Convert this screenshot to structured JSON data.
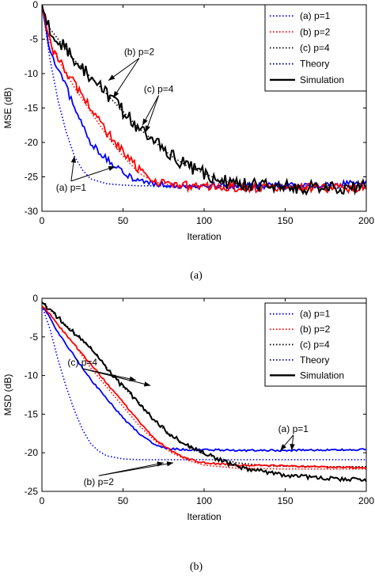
{
  "chart_data": [
    {
      "type": "line",
      "caption": "(a)",
      "xlabel": "Iteration",
      "ylabel": "MSE (dB)",
      "xlim": [
        0,
        200
      ],
      "ylim": [
        -30,
        0
      ],
      "xticks": [
        0,
        50,
        100,
        150,
        200
      ],
      "yticks": [
        0,
        -5,
        -10,
        -15,
        -20,
        -25,
        -30
      ],
      "legend_position": "top-right",
      "legend": [
        {
          "label": "(a) p=1",
          "color": "#0000ff",
          "style": "dotted"
        },
        {
          "label": "(b) p=2",
          "color": "#ff0000",
          "style": "dotted"
        },
        {
          "label": "(c) p=4",
          "color": "#000000",
          "style": "dotted"
        },
        {
          "label": "Theory",
          "color": "#000080",
          "style": "dotted"
        },
        {
          "label": "Simulation",
          "color": "#000000",
          "style": "solid"
        }
      ],
      "series": [
        {
          "name": "(a) p=1",
          "kind": "theory",
          "color": "#0000ff",
          "noise": 0,
          "x": [
            0,
            2,
            5,
            10,
            15,
            20,
            25,
            30,
            40,
            50,
            60,
            80,
            100,
            150,
            200
          ],
          "y": [
            0,
            -3,
            -8,
            -14,
            -18.5,
            -22,
            -24,
            -25.3,
            -26,
            -26.2,
            -26.3,
            -26.3,
            -26.3,
            -26.3,
            -26.3
          ]
        },
        {
          "name": "(a) p=1",
          "kind": "simulation",
          "color": "#0000ff",
          "noise": 0.5,
          "x": [
            0,
            2,
            5,
            10,
            15,
            20,
            25,
            30,
            40,
            50,
            60,
            70,
            80,
            100,
            150,
            200
          ],
          "y": [
            0,
            -3,
            -7,
            -9.5,
            -12,
            -15,
            -17.5,
            -20,
            -22.5,
            -24.5,
            -25.5,
            -26,
            -26.2,
            -26.3,
            -26.3,
            -26
          ]
        },
        {
          "name": "(b) p=2",
          "kind": "theory",
          "color": "#ff0000",
          "noise": 0,
          "x": [
            0,
            2,
            5,
            10,
            20,
            30,
            40,
            50,
            60,
            70,
            80,
            100,
            150,
            200
          ],
          "y": [
            0,
            -2.5,
            -5.5,
            -8,
            -12,
            -15.5,
            -19,
            -22,
            -24.5,
            -25.8,
            -26.2,
            -26.4,
            -26.5,
            -26.5
          ]
        },
        {
          "name": "(b) p=2",
          "kind": "simulation",
          "color": "#ff0000",
          "noise": 0.7,
          "x": [
            0,
            2,
            5,
            10,
            20,
            30,
            40,
            50,
            60,
            70,
            80,
            100,
            150,
            200
          ],
          "y": [
            0,
            -2.5,
            -5.5,
            -8,
            -11.5,
            -15,
            -18.5,
            -21.5,
            -24,
            -25.5,
            -26.2,
            -26.5,
            -26.6,
            -26.6
          ]
        },
        {
          "name": "(c) p=4",
          "kind": "theory",
          "color": "#000000",
          "noise": 0,
          "x": [
            0,
            2,
            5,
            10,
            20,
            30,
            40,
            50,
            60,
            70,
            80,
            90,
            100,
            110,
            120,
            150,
            200
          ],
          "y": [
            0,
            -2,
            -3.5,
            -5,
            -8,
            -10.5,
            -13,
            -15.5,
            -18,
            -20,
            -22,
            -23.5,
            -24.5,
            -25.5,
            -26,
            -26.5,
            -26.7
          ]
        },
        {
          "name": "(c) p=4",
          "kind": "simulation",
          "color": "#000000",
          "noise": 1.0,
          "x": [
            0,
            2,
            5,
            10,
            20,
            30,
            40,
            50,
            60,
            70,
            80,
            90,
            100,
            110,
            120,
            150,
            200
          ],
          "y": [
            0,
            -2,
            -3.5,
            -5,
            -8,
            -10.5,
            -13,
            -15.5,
            -18,
            -20,
            -22,
            -23.5,
            -24.5,
            -25.5,
            -26,
            -26.5,
            -26.5
          ]
        }
      ],
      "annotations": [
        {
          "text": "(b) p=2",
          "x": 60,
          "y": -7.3,
          "arrows": [
            [
              41,
              -11
            ],
            [
              44,
              -13.5
            ]
          ]
        },
        {
          "text": "(c) p=4",
          "x": 72,
          "y": -12.7,
          "arrows": [
            [
              62,
              -17.5
            ],
            [
              64,
              -18.5
            ]
          ]
        },
        {
          "text": "(a) p=1",
          "x": 18,
          "y": -27,
          "arrows": [
            [
              20,
              -22
            ],
            [
              45,
              -23.5
            ]
          ]
        }
      ]
    },
    {
      "type": "line",
      "caption": "(b)",
      "xlabel": "Iteration",
      "ylabel": "MSD (dB)",
      "xlim": [
        0,
        200
      ],
      "ylim": [
        -25,
        0
      ],
      "xticks": [
        0,
        50,
        100,
        150,
        200
      ],
      "yticks": [
        0,
        -5,
        -10,
        -15,
        -20,
        -25
      ],
      "legend_position": "top-right",
      "legend": [
        {
          "label": "(a) p=1",
          "color": "#0000ff",
          "style": "dotted"
        },
        {
          "label": "(b) p=2",
          "color": "#ff0000",
          "style": "dotted"
        },
        {
          "label": "(c) p=4",
          "color": "#000000",
          "style": "dotted"
        },
        {
          "label": "Theory",
          "color": "#000080",
          "style": "dotted"
        },
        {
          "label": "Simulation",
          "color": "#000000",
          "style": "solid"
        }
      ],
      "series": [
        {
          "name": "(a) p=1",
          "kind": "theory",
          "color": "#0000ff",
          "noise": 0,
          "x": [
            0,
            5,
            10,
            15,
            20,
            25,
            30,
            35,
            40,
            50,
            60,
            80,
            100,
            150,
            200
          ],
          "y": [
            -1,
            -4,
            -8,
            -11.5,
            -14.5,
            -17,
            -18.8,
            -19.8,
            -20.4,
            -20.8,
            -20.9,
            -20.9,
            -20.9,
            -20.9,
            -20.9
          ]
        },
        {
          "name": "(a) p=1",
          "kind": "simulation",
          "color": "#0000ff",
          "noise": 0.12,
          "x": [
            0,
            5,
            10,
            20,
            30,
            40,
            50,
            60,
            70,
            80,
            90,
            100,
            120,
            150,
            200
          ],
          "y": [
            -1,
            -2.5,
            -4.5,
            -7.5,
            -10.5,
            -13,
            -15.5,
            -17.5,
            -19,
            -19.5,
            -19.6,
            -19.6,
            -19.7,
            -19.7,
            -19.6
          ]
        },
        {
          "name": "(b) p=2",
          "kind": "theory",
          "color": "#ff0000",
          "noise": 0,
          "x": [
            0,
            5,
            10,
            20,
            30,
            40,
            50,
            60,
            70,
            80,
            90,
            100,
            120,
            150,
            200
          ],
          "y": [
            -1,
            -2,
            -3.5,
            -6,
            -9,
            -11.5,
            -14,
            -16.5,
            -18.5,
            -20,
            -21,
            -21.6,
            -22,
            -22.1,
            -22.1
          ]
        },
        {
          "name": "(b) p=2",
          "kind": "simulation",
          "color": "#ff0000",
          "noise": 0.12,
          "x": [
            0,
            5,
            10,
            20,
            30,
            40,
            50,
            60,
            70,
            80,
            90,
            100,
            120,
            150,
            200
          ],
          "y": [
            -1,
            -2,
            -3.5,
            -6,
            -8.5,
            -11,
            -13.5,
            -16,
            -18.3,
            -19.8,
            -20.8,
            -21.3,
            -21.6,
            -21.7,
            -22
          ]
        },
        {
          "name": "(c) p=4",
          "kind": "theory",
          "color": "#000000",
          "noise": 0,
          "x": [
            0,
            10,
            20,
            30,
            40,
            50,
            60,
            70,
            80,
            90,
            100,
            120,
            140,
            160,
            200
          ],
          "y": [
            -0.5,
            -2.5,
            -4.5,
            -6.5,
            -9,
            -11.5,
            -13.5,
            -16,
            -17.8,
            -19.2,
            -20.2,
            -21.3,
            -21.7,
            -21.8,
            -21.8
          ]
        },
        {
          "name": "(c) p=4",
          "kind": "simulation",
          "color": "#000000",
          "noise": 0.3,
          "x": [
            0,
            10,
            20,
            30,
            40,
            50,
            60,
            70,
            80,
            90,
            100,
            110,
            120,
            140,
            160,
            180,
            200
          ],
          "y": [
            -0.5,
            -2.5,
            -4.5,
            -6.5,
            -9,
            -11.5,
            -13.5,
            -16,
            -17.8,
            -19,
            -20,
            -21,
            -21.8,
            -22.6,
            -23.1,
            -23.4,
            -23.5
          ]
        }
      ],
      "annotations": [
        {
          "text": "(c) p=4",
          "x": 25,
          "y": -8.7,
          "arrows": [
            [
              58,
              -10.6
            ],
            [
              67,
              -11.3
            ]
          ]
        },
        {
          "text": "(a) p=1",
          "x": 155,
          "y": -17.3,
          "arrows": [
            [
              147,
              -19.7
            ],
            [
              154,
              -19.7
            ]
          ]
        },
        {
          "text": "(b) p=2",
          "x": 35,
          "y": -24.2,
          "arrows": [
            [
              75,
              -21.3
            ],
            [
              81,
              -21.3
            ]
          ]
        }
      ]
    }
  ]
}
